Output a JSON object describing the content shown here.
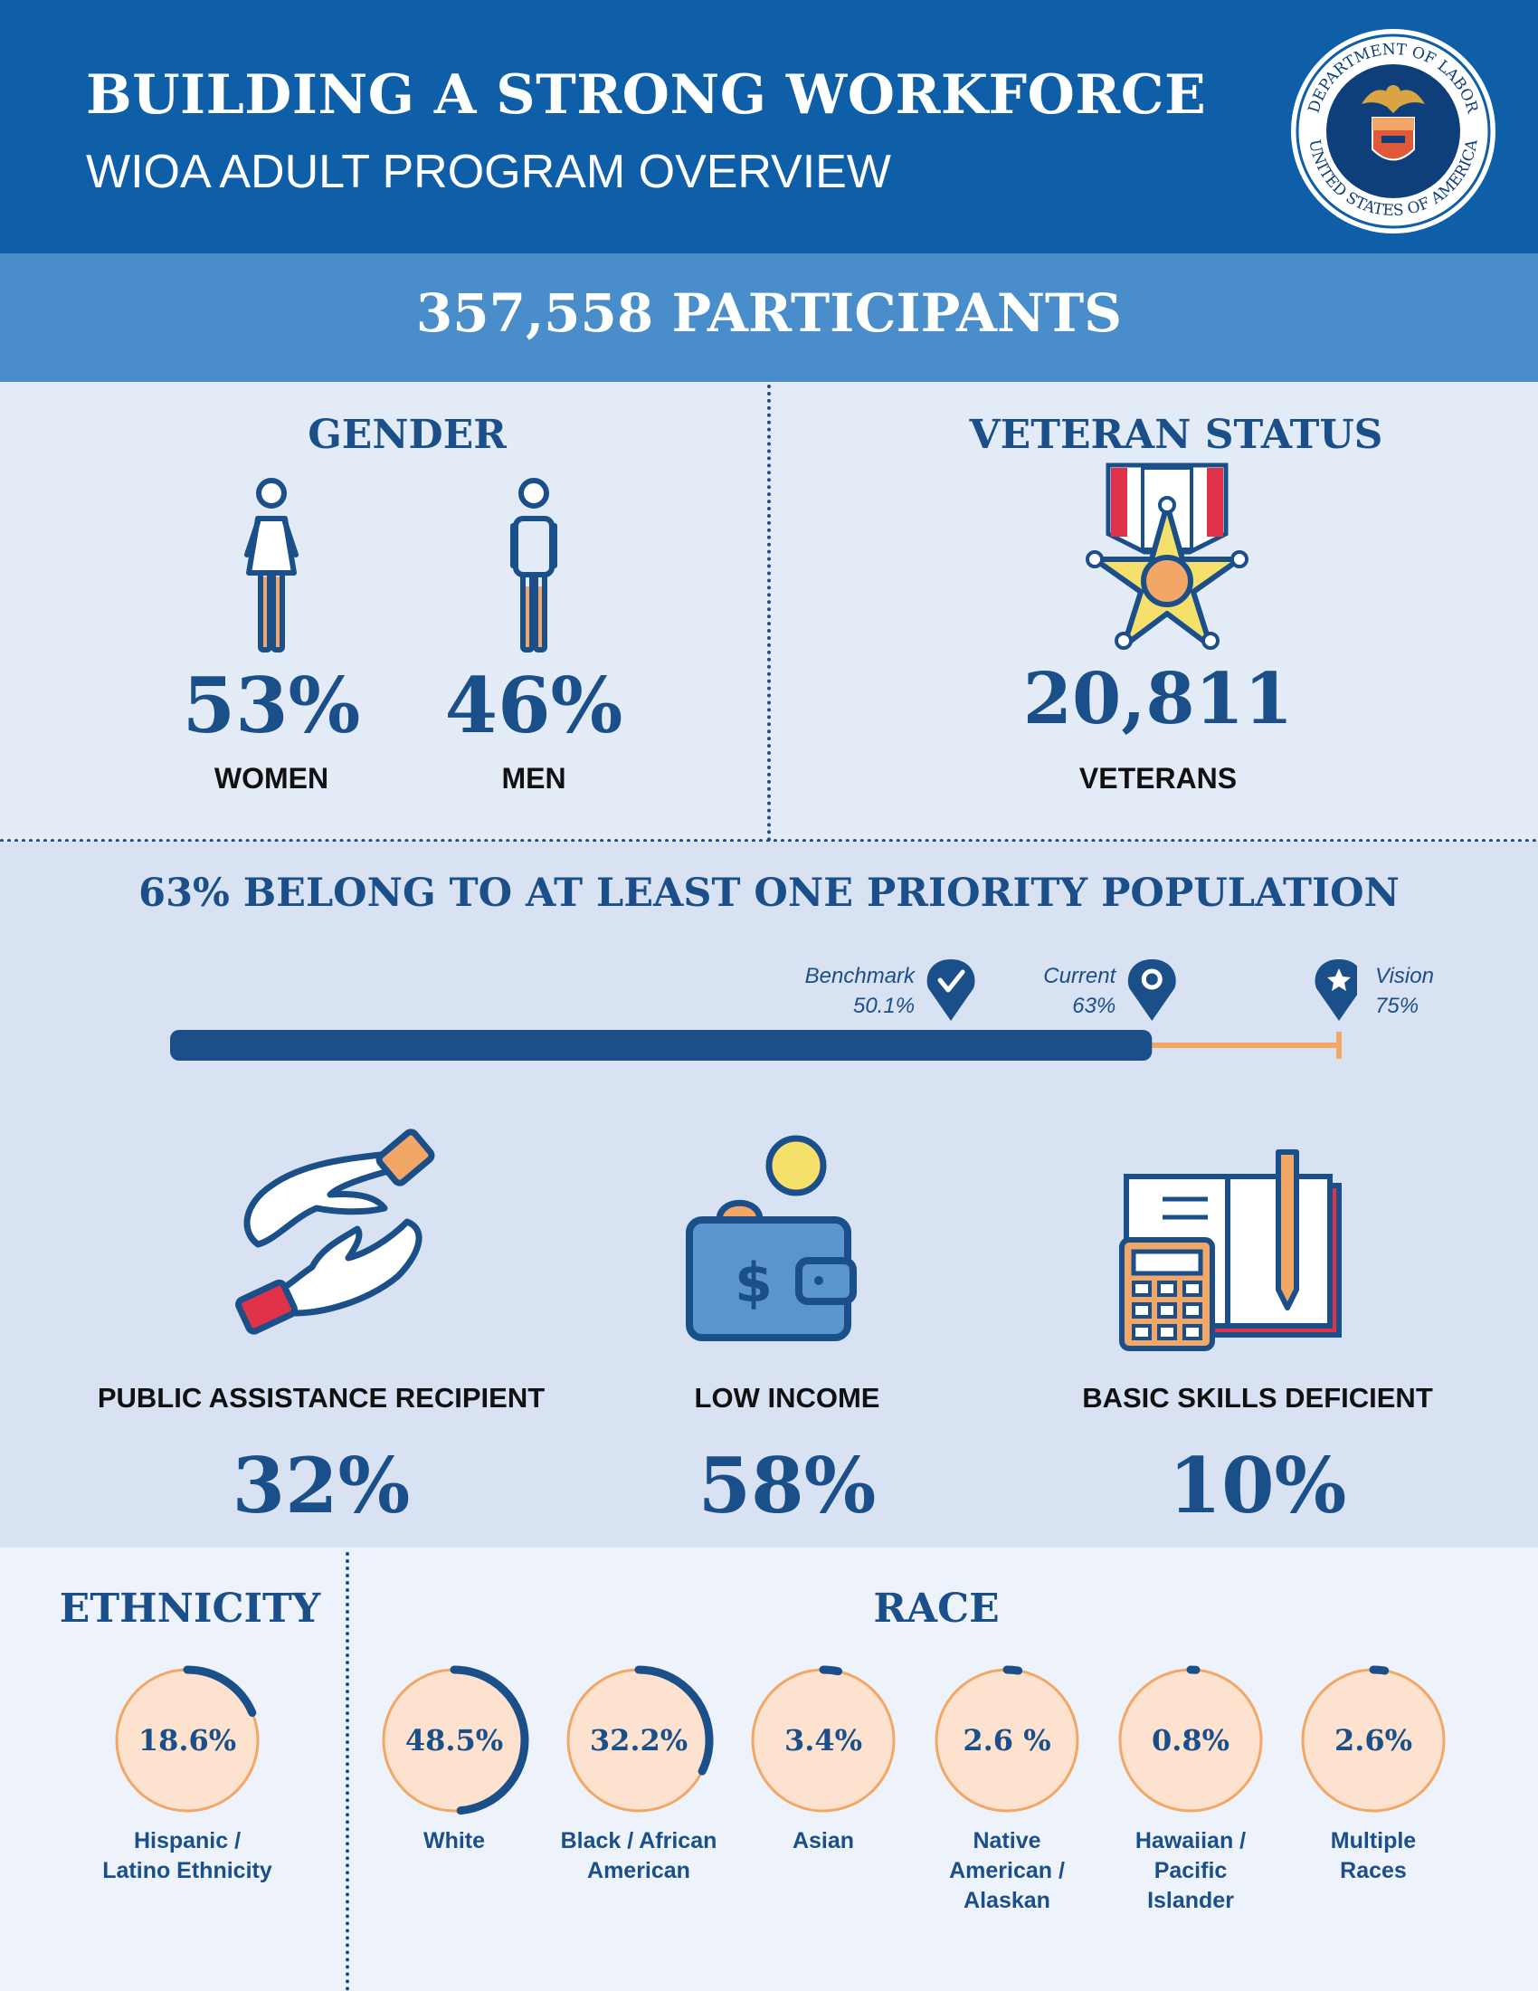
{
  "header": {
    "title": "BUILDING A STRONG WORKFORCE",
    "subtitle": "WIOA ADULT PROGRAM OVERVIEW",
    "seal": {
      "top_text": "DEPARTMENT OF LABOR",
      "bottom_text": "UNITED STATES OF AMERICA",
      "icon": "department-of-labor-seal"
    }
  },
  "participants": "357,558 PARTICIPANTS",
  "gender": {
    "heading": "GENDER",
    "women": {
      "value": "53%",
      "label": "WOMEN",
      "fill_fraction": 0.53,
      "icon": "woman-icon"
    },
    "men": {
      "value": "46%",
      "label": "MEN",
      "fill_fraction": 0.46,
      "icon": "man-icon"
    }
  },
  "veteran": {
    "heading": "VETERAN STATUS",
    "value": "20,811",
    "label": "VETERANS",
    "icon": "medal-icon"
  },
  "priority": {
    "heading": "63% BELONG TO AT LEAST ONE PRIORITY POPULATION",
    "progress": {
      "current": 63,
      "max": 75,
      "markers": [
        {
          "name": "Benchmark",
          "value_text": "50.1%",
          "value": 50.1,
          "icon": "check-pin-icon"
        },
        {
          "name": "Current",
          "value_text": "63%",
          "value": 63,
          "icon": "location-pin-icon"
        },
        {
          "name": "Vision",
          "value_text": "75%",
          "value": 75,
          "icon": "star-pin-icon"
        }
      ]
    },
    "categories": [
      {
        "label": "PUBLIC ASSISTANCE RECIPIENT",
        "value": "32%",
        "icon": "helping-hands-icon"
      },
      {
        "label": "LOW INCOME",
        "value": "58%",
        "icon": "wallet-icon"
      },
      {
        "label": "BASIC SKILLS DEFICIENT",
        "value": "10%",
        "icon": "calculator-book-icon"
      }
    ]
  },
  "ethnicity": {
    "heading": "ETHNICITY",
    "items": [
      {
        "value": "18.6%",
        "fraction": 0.186,
        "label_lines": [
          "Hispanic /",
          "Latino Ethnicity"
        ]
      }
    ]
  },
  "race": {
    "heading": "RACE",
    "items": [
      {
        "value": "48.5%",
        "fraction": 0.485,
        "label_lines": [
          "White"
        ]
      },
      {
        "value": "32.2%",
        "fraction": 0.322,
        "label_lines": [
          "Black / African",
          "American"
        ]
      },
      {
        "value": "3.4%",
        "fraction": 0.034,
        "label_lines": [
          "Asian"
        ]
      },
      {
        "value": "2.6 %",
        "fraction": 0.026,
        "label_lines": [
          "Native",
          "American /",
          "Alaskan"
        ]
      },
      {
        "value": "0.8%",
        "fraction": 0.008,
        "label_lines": [
          "Hawaiian /",
          "Pacific",
          "Islander"
        ]
      },
      {
        "value": "2.6%",
        "fraction": 0.026,
        "label_lines": [
          "Multiple",
          "Races"
        ]
      }
    ]
  },
  "colors": {
    "navy": "#1a4f8a",
    "header_blue": "#0f5ea8",
    "banner_blue": "#4a8dcb",
    "orange": "#f2a766",
    "peach": "#fde3cf",
    "red": "#e0334a",
    "yellow": "#f5e06b"
  }
}
